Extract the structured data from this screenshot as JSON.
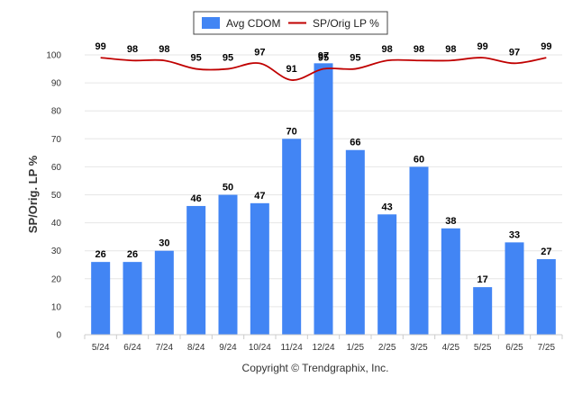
{
  "chart_data": {
    "type": "bar",
    "categories": [
      "5/24",
      "6/24",
      "7/24",
      "8/24",
      "9/24",
      "10/24",
      "11/24",
      "12/24",
      "1/25",
      "2/25",
      "3/25",
      "4/25",
      "5/25",
      "6/25",
      "7/25"
    ],
    "series": [
      {
        "name": "Avg CDOM",
        "kind": "bar",
        "color": "#4285f4",
        "values": [
          26,
          26,
          30,
          46,
          50,
          47,
          70,
          97,
          66,
          43,
          60,
          38,
          17,
          33,
          27
        ]
      },
      {
        "name": "SP/Orig LP %",
        "kind": "line",
        "color": "#c00000",
        "values": [
          99,
          98,
          98,
          95,
          95,
          97,
          91,
          95,
          95,
          98,
          98,
          98,
          99,
          97,
          99
        ]
      }
    ],
    "ylabel": "SP/Orig. LP %",
    "ylim": [
      0,
      100
    ],
    "yticks": [
      0,
      10,
      20,
      30,
      40,
      50,
      60,
      70,
      80,
      90,
      100
    ],
    "grid": true,
    "legend_position": "top-center"
  },
  "footer": {
    "credit": "Copyright © Trendgraphix, Inc."
  }
}
